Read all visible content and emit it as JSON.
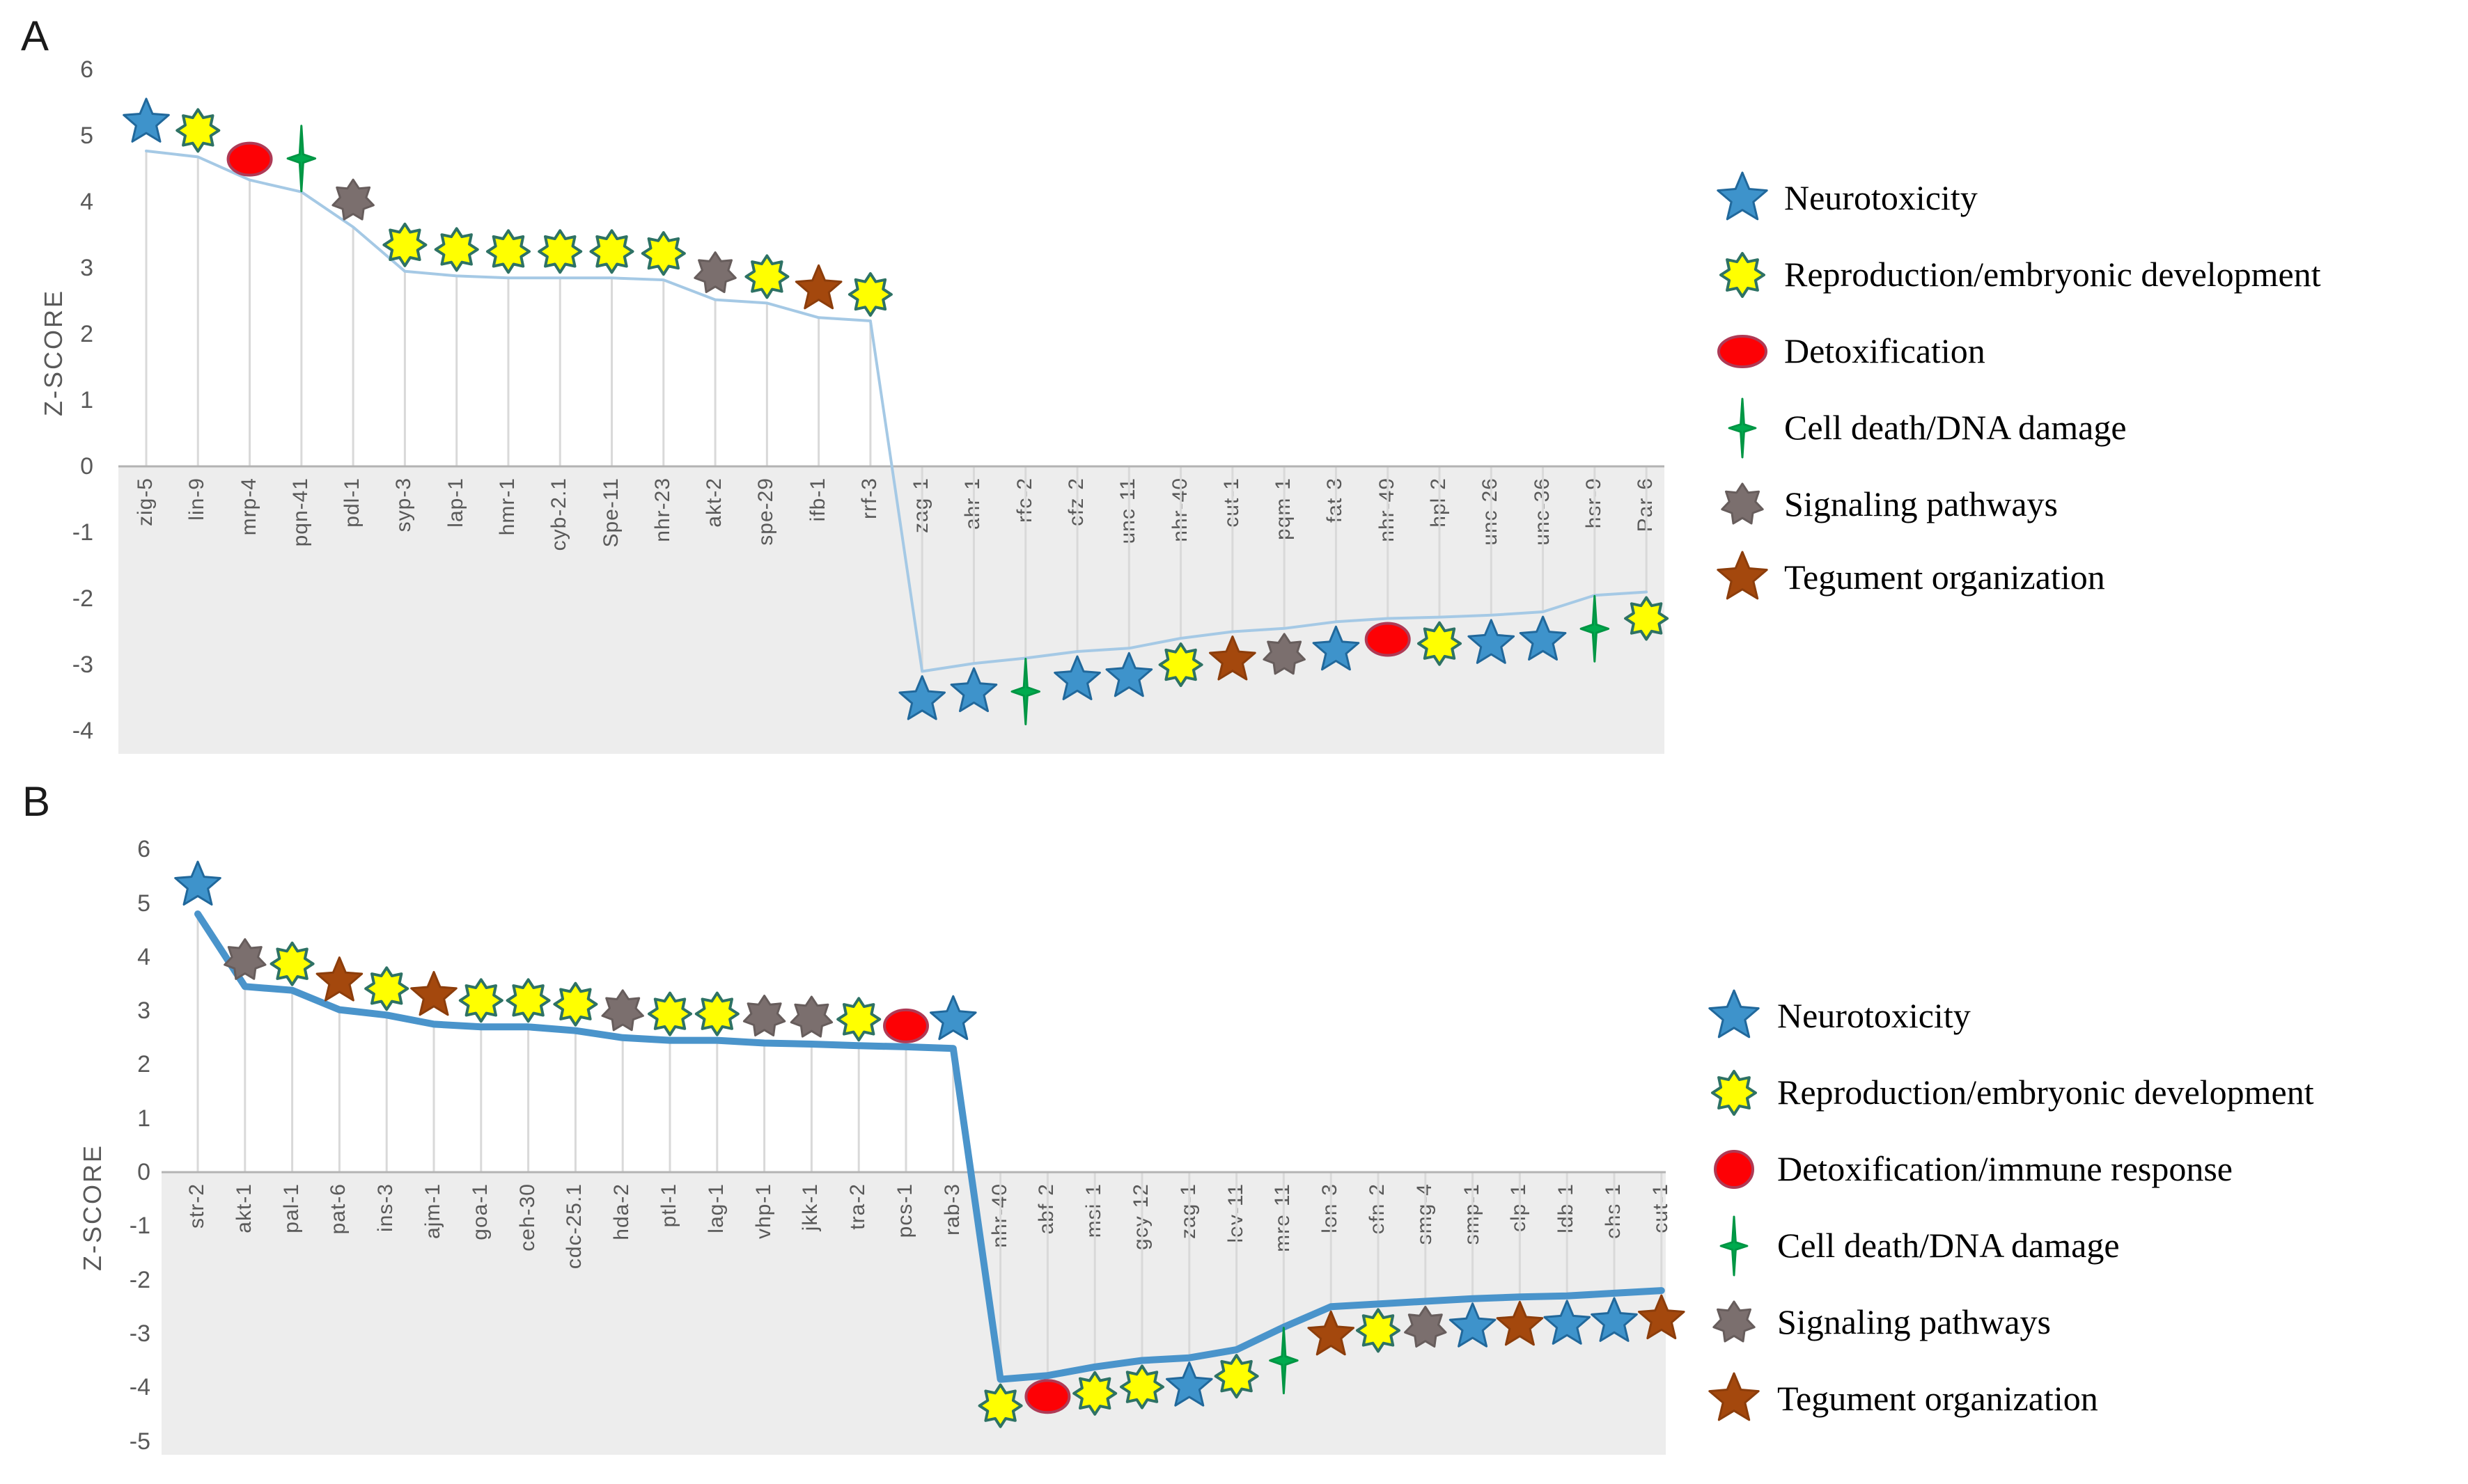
{
  "figure": {
    "background": "#ffffff",
    "axis_color": "#b3b3b3",
    "drop_line_color": "#d9d9d9",
    "below_zero_shade": "#ededed",
    "text_color": "#595959"
  },
  "marker_styles": {
    "neuro": {
      "shape": "star5",
      "fill": "#3E93CB",
      "stroke": "#21689B"
    },
    "repro": {
      "shape": "star8",
      "fill": "#FFFF00",
      "stroke": "#2E7265"
    },
    "detox": {
      "shape": "ellipse",
      "fill": "#FD0105",
      "stroke": "#AF3A55"
    },
    "celldeath": {
      "shape": "star4",
      "fill": "#00AB4E",
      "stroke": "#009644"
    },
    "signaling": {
      "shape": "star7",
      "fill": "#7B6F6E",
      "stroke": "#675D5C"
    },
    "tegument": {
      "shape": "star5",
      "fill": "#A4480D",
      "stroke": "#8C3D0B"
    }
  },
  "chart_data": [
    {
      "panel_label": "A",
      "type": "line",
      "ylabel": "Z-SCORE",
      "ylim": [
        -4,
        6
      ],
      "yticks": [
        6,
        5,
        4,
        3,
        2,
        1,
        0,
        -1,
        -2,
        -3,
        -4
      ],
      "grid": "drop-lines",
      "legend_position": "right",
      "line_color": "#A5C9E5",
      "line_width": 4,
      "categories": [
        "zig-5",
        "lin-9",
        "mrp-4",
        "pqn-41",
        "pdl-1",
        "syp-3",
        "lap-1",
        "hmr-1",
        "cyb-2.1",
        "Spe-11",
        "nhr-23",
        "akt-2",
        "spe-29",
        "ifb-1",
        "rrf-3",
        "zag-1",
        "ahr-1",
        "rfc-2",
        "cfz-2",
        "unc-11",
        "nhr-40",
        "cut-1",
        "pqm-1",
        "fat-3",
        "nhr-49",
        "hpl-2",
        "unc-26",
        "unc-36",
        "hsr-9",
        "Par-6"
      ],
      "line_values": [
        4.77,
        4.68,
        4.33,
        4.15,
        3.62,
        2.95,
        2.88,
        2.85,
        2.85,
        2.85,
        2.82,
        2.52,
        2.47,
        2.25,
        2.2,
        -3.1,
        -2.98,
        -2.9,
        -2.8,
        -2.75,
        -2.6,
        -2.5,
        -2.45,
        -2.35,
        -2.3,
        -2.28,
        -2.25,
        -2.2,
        -1.95,
        -1.9
      ],
      "marker_keys": [
        "neuro",
        "repro",
        "detox",
        "celldeath",
        "signaling",
        "repro",
        "repro",
        "repro",
        "repro",
        "repro",
        "repro",
        "signaling",
        "repro",
        "tegument",
        "repro",
        "neuro",
        "neuro",
        "celldeath",
        "neuro",
        "neuro",
        "repro",
        "tegument",
        "signaling",
        "neuro",
        "detox",
        "repro",
        "neuro",
        "neuro",
        "celldeath",
        "repro"
      ],
      "legend": [
        {
          "icon": "neuro",
          "label": "Neurotoxicity"
        },
        {
          "icon": "repro",
          "label": "Reproduction/embryonic development"
        },
        {
          "icon": "detox",
          "label": "Detoxification"
        },
        {
          "icon": "celldeath",
          "label": "Cell death/DNA damage"
        },
        {
          "icon": "signaling",
          "label": "Signaling pathways"
        },
        {
          "icon": "tegument",
          "label": "Tegument organization"
        }
      ]
    },
    {
      "panel_label": "B",
      "type": "line",
      "ylabel": "Z-SCORE",
      "ylim": [
        -5,
        6
      ],
      "yticks": [
        6,
        5,
        4,
        3,
        2,
        1,
        0,
        -1,
        -2,
        -3,
        -4,
        -5
      ],
      "grid": "drop-lines",
      "legend_position": "right",
      "line_color": "#4A94CB",
      "line_width": 10,
      "categories": [
        "str-2",
        "akt-1",
        "pal-1",
        "pat-6",
        "ins-3",
        "ajm-1",
        "goa-1",
        "ceh-30",
        "cdc-25.1",
        "hda-2",
        "ptl-1",
        "lag-1",
        "vhp-1",
        "jkk-1",
        "tra-2",
        "pcs-1",
        "rab-3",
        "nhr-40",
        "abf-2",
        "msi-1",
        "gcy-12",
        "zag-1",
        "lev-11",
        "mre-11",
        "lon-3",
        "efn-2",
        "smg-4",
        "smp-1",
        "clp-1",
        "ldb-1",
        "ehs-1",
        "cut-1"
      ],
      "line_values": [
        4.8,
        3.45,
        3.38,
        3.02,
        2.92,
        2.75,
        2.7,
        2.7,
        2.63,
        2.5,
        2.45,
        2.45,
        2.4,
        2.38,
        2.35,
        2.33,
        2.3,
        -3.85,
        -3.78,
        -3.62,
        -3.5,
        -3.45,
        -3.3,
        -2.88,
        -2.5,
        -2.45,
        -2.4,
        -2.35,
        -2.32,
        -2.3,
        -2.25,
        -2.2
      ],
      "marker_keys": [
        "neuro",
        "signaling",
        "repro",
        "tegument",
        "repro",
        "tegument",
        "repro",
        "repro",
        "repro",
        "signaling",
        "repro",
        "repro",
        "signaling",
        "signaling",
        "repro",
        "detox",
        "neuro",
        "repro",
        "detox",
        "repro",
        "repro",
        "neuro",
        "repro",
        "celldeath",
        "tegument",
        "repro",
        "signaling",
        "neuro",
        "tegument",
        "neuro",
        "neuro",
        "tegument"
      ],
      "legend": [
        {
          "icon": "neuro",
          "label": "Neurotoxicity"
        },
        {
          "icon": "repro",
          "label": "Reproduction/embryonic development"
        },
        {
          "icon": "detox",
          "label": "Detoxification/immune response"
        },
        {
          "icon": "celldeath",
          "label": "Cell death/DNA damage"
        },
        {
          "icon": "signaling",
          "label": "Signaling pathways"
        },
        {
          "icon": "tegument",
          "label": "Tegument organization"
        }
      ]
    }
  ]
}
